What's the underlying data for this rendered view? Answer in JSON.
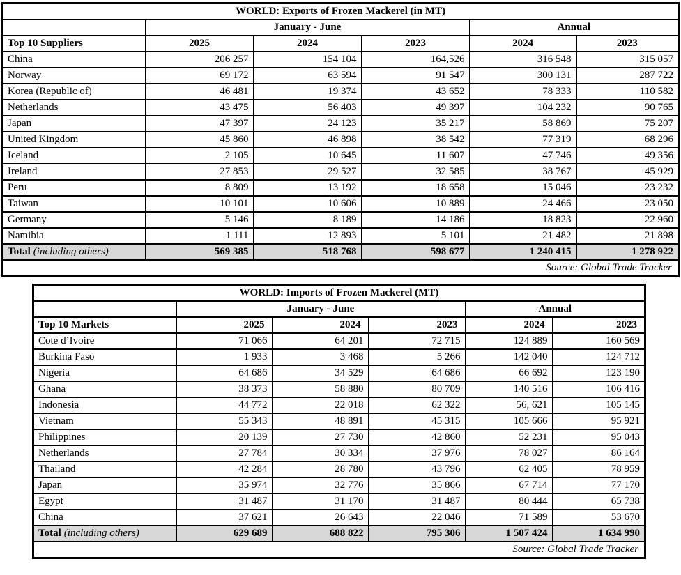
{
  "colors": {
    "border": "#000000",
    "total_row_background": "#d8d8d8",
    "page_background": "#ffffff"
  },
  "tables": [
    {
      "title": "WORLD: Exports of Frozen Mackerel (in MT)",
      "period_header": "January - June",
      "annual_header": "Annual",
      "row_header": "Top 10 Suppliers",
      "year_columns": [
        "2025",
        "2024",
        "2023",
        "2024",
        "2023"
      ],
      "rows": [
        {
          "name": "China",
          "values": [
            "206 257",
            "154 104",
            "164,526",
            "316 548",
            "315 057"
          ]
        },
        {
          "name": "Norway",
          "values": [
            "69 172",
            "63 594",
            "91 547",
            "300 131",
            "287 722"
          ]
        },
        {
          "name": "Korea (Republic of)",
          "values": [
            "46 481",
            "19 374",
            "43 652",
            "78 333",
            "110 582"
          ]
        },
        {
          "name": "Netherlands",
          "values": [
            "43 475",
            "56 403",
            "49 397",
            "104 232",
            "90 765"
          ]
        },
        {
          "name": "Japan",
          "values": [
            "47 397",
            "24 123",
            "35 217",
            "58 869",
            "75 207"
          ]
        },
        {
          "name": "United Kingdom",
          "values": [
            "45 860",
            "46 898",
            "38 542",
            "77 319",
            "68 296"
          ]
        },
        {
          "name": "Iceland",
          "values": [
            "2 105",
            "10 645",
            "11 607",
            "47 746",
            "49 356"
          ]
        },
        {
          "name": "Ireland",
          "values": [
            "27 853",
            "29 527",
            "32 585",
            "38 767",
            "45 929"
          ]
        },
        {
          "name": "Peru",
          "values": [
            "8 809",
            "13 192",
            "18 658",
            "15 046",
            "23 232"
          ]
        },
        {
          "name": "Taiwan",
          "values": [
            "10 101",
            "10 606",
            "10 889",
            "24 466",
            "23 050"
          ]
        },
        {
          "name": "Germany",
          "values": [
            "5 146",
            "8 189",
            "14 186",
            "18 823",
            "22 960"
          ]
        },
        {
          "name": "Namibia",
          "values": [
            "1 111",
            "12 893",
            "5 101",
            "21 482",
            "21 898"
          ]
        }
      ],
      "total": {
        "label_bold": "Total",
        "label_italic": "(including others)",
        "values": [
          "569 385",
          "518 768",
          "598 677",
          "1 240 415",
          "1 278 922"
        ]
      },
      "source": "Source: Global Trade Tracker"
    },
    {
      "title": "WORLD: Imports of Frozen Mackerel (MT)",
      "period_header": "January - June",
      "annual_header": "Annual",
      "row_header": "Top 10 Markets",
      "year_columns": [
        "2025",
        "2024",
        "2023",
        "2024",
        "2023"
      ],
      "rows": [
        {
          "name": "Cote d’Ivoire",
          "values": [
            "71 066",
            "64 201",
            "72 715",
            "124 889",
            "160 569"
          ]
        },
        {
          "name": "Burkina Faso",
          "values": [
            "1 933",
            "3 468",
            "5 266",
            "142 040",
            "124 712"
          ]
        },
        {
          "name": "Nigeria",
          "values": [
            "64 686",
            "34 529",
            "64 686",
            "66 692",
            "123 190"
          ]
        },
        {
          "name": "Ghana",
          "values": [
            "38 373",
            "58 880",
            "80 709",
            "140 516",
            "106 416"
          ]
        },
        {
          "name": "Indonesia",
          "values": [
            "44 772",
            "22 018",
            "62 322",
            "56, 621",
            "105 145"
          ]
        },
        {
          "name": "Vietnam",
          "values": [
            "55 343",
            "48 891",
            "45 315",
            "105 666",
            "95 921"
          ]
        },
        {
          "name": "Philippines",
          "values": [
            "20 139",
            "27 730",
            "42 860",
            "52 231",
            "95 043"
          ]
        },
        {
          "name": "Netherlands",
          "values": [
            "27 784",
            "30 334",
            "37 976",
            "78 027",
            "86 164"
          ]
        },
        {
          "name": "Thailand",
          "values": [
            "42 284",
            "28 780",
            "43 796",
            "62 405",
            "78 959"
          ]
        },
        {
          "name": "Japan",
          "values": [
            "35 974",
            "32 776",
            "35 866",
            "67 714",
            "77 170"
          ]
        },
        {
          "name": "Egypt",
          "values": [
            "31 487",
            "31 170",
            "31 487",
            "80 444",
            "65 738"
          ]
        },
        {
          "name": "China",
          "values": [
            "37 621",
            "26 643",
            "22 046",
            "71 589",
            "53 670"
          ]
        }
      ],
      "total": {
        "label_bold": "Total",
        "label_italic": "(including others)",
        "values": [
          "629 689",
          "688 822",
          "795 306",
          "1 507 424",
          "1 634 990"
        ]
      },
      "source": "Source: Global Trade Tracker"
    }
  ]
}
